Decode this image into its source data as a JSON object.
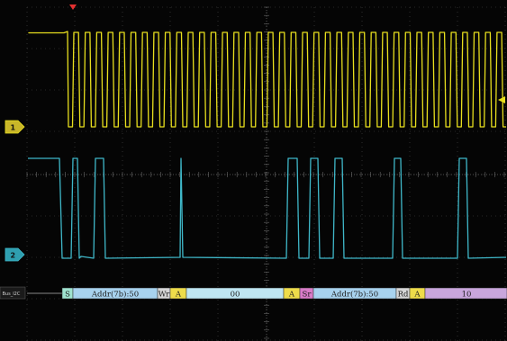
{
  "scope": {
    "channels": [
      {
        "number": "1",
        "color": "#e8df1e",
        "marker_icon": "channel-1-ground-marker"
      },
      {
        "number": "2",
        "color": "#3fb8c9",
        "marker_icon": "channel-2-ground-marker"
      }
    ],
    "trigger": {
      "color": "#e33030",
      "icon": "trigger-position-icon"
    },
    "trigger_level_icon": "trigger-level-arrow-icon",
    "grid_color": "#4a4a4a",
    "bus": {
      "label": "Bus_I2C",
      "segments": [
        {
          "text": "S",
          "kind": "start"
        },
        {
          "text": "Addr(7b):50",
          "kind": "address"
        },
        {
          "text": "Wr",
          "kind": "rw"
        },
        {
          "text": "A",
          "kind": "ack"
        },
        {
          "text": "00",
          "kind": "data"
        },
        {
          "text": "A",
          "kind": "ack"
        },
        {
          "text": "Sr",
          "kind": "restart"
        },
        {
          "text": "Addr(7b):50",
          "kind": "address"
        },
        {
          "text": "Rd",
          "kind": "rw"
        },
        {
          "text": "A",
          "kind": "ack"
        },
        {
          "text": "10",
          "kind": "data_read"
        }
      ]
    },
    "segment_colors": {
      "start": "#9fe3cf",
      "address": "#a8d2ee",
      "rw": "#d6d6d6",
      "ack": "#eedc4a",
      "data": "#bfe6f2",
      "restart": "#d97cc8",
      "data_read": "#c9a6dc"
    }
  }
}
